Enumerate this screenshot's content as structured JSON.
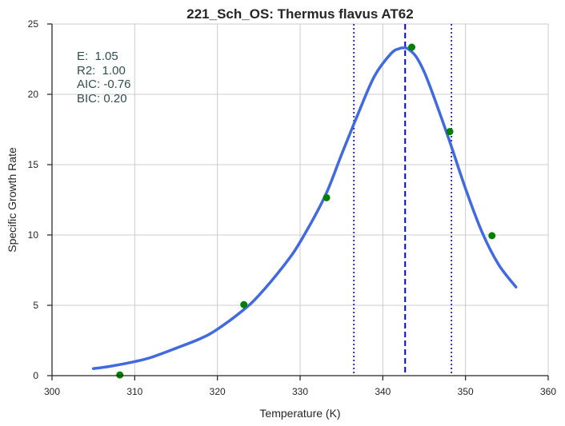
{
  "chart_data": {
    "type": "scatter",
    "title": "221_Sch_OS: Thermus flavus AT62",
    "xlabel": "Temperature (K)",
    "ylabel": "Specific Growth Rate",
    "xlim": [
      300,
      360
    ],
    "ylim": [
      0,
      25
    ],
    "xticks": [
      300,
      310,
      320,
      330,
      340,
      350,
      360
    ],
    "yticks": [
      0,
      5,
      10,
      15,
      20,
      25
    ],
    "grid": true,
    "annotations": [
      "E:  1.05",
      "R2:  1.00",
      "AIC: -0.76",
      "BIC: 0.20"
    ],
    "points": {
      "color": "#008000",
      "x": [
        308.2,
        323.2,
        333.2,
        343.5,
        348.1,
        353.2
      ],
      "y": [
        0.05,
        5.05,
        12.65,
        23.35,
        17.35,
        9.95
      ]
    },
    "fit_curve": {
      "color": "#4169e1",
      "x": [
        305,
        307,
        310,
        312,
        315,
        318,
        320,
        323,
        325,
        328,
        330,
        333,
        335,
        337,
        339,
        341,
        342,
        342.5,
        343,
        344,
        345,
        346,
        348,
        350,
        352,
        354,
        356.1
      ],
      "y": [
        0.5,
        0.66,
        1.0,
        1.3,
        1.95,
        2.65,
        3.3,
        4.6,
        5.7,
        7.8,
        9.5,
        12.75,
        15.7,
        18.6,
        21.3,
        22.9,
        23.25,
        23.3,
        23.25,
        22.7,
        21.6,
        20.1,
        16.8,
        13.3,
        10.2,
        7.9,
        6.3
      ]
    },
    "vlines": [
      {
        "x": 342.7,
        "style": "dashed",
        "color": "#0000ff"
      },
      {
        "x": 336.5,
        "style": "dotted",
        "color": "#0000ff"
      },
      {
        "x": 348.3,
        "style": "dotted",
        "color": "#0000ff"
      }
    ]
  }
}
